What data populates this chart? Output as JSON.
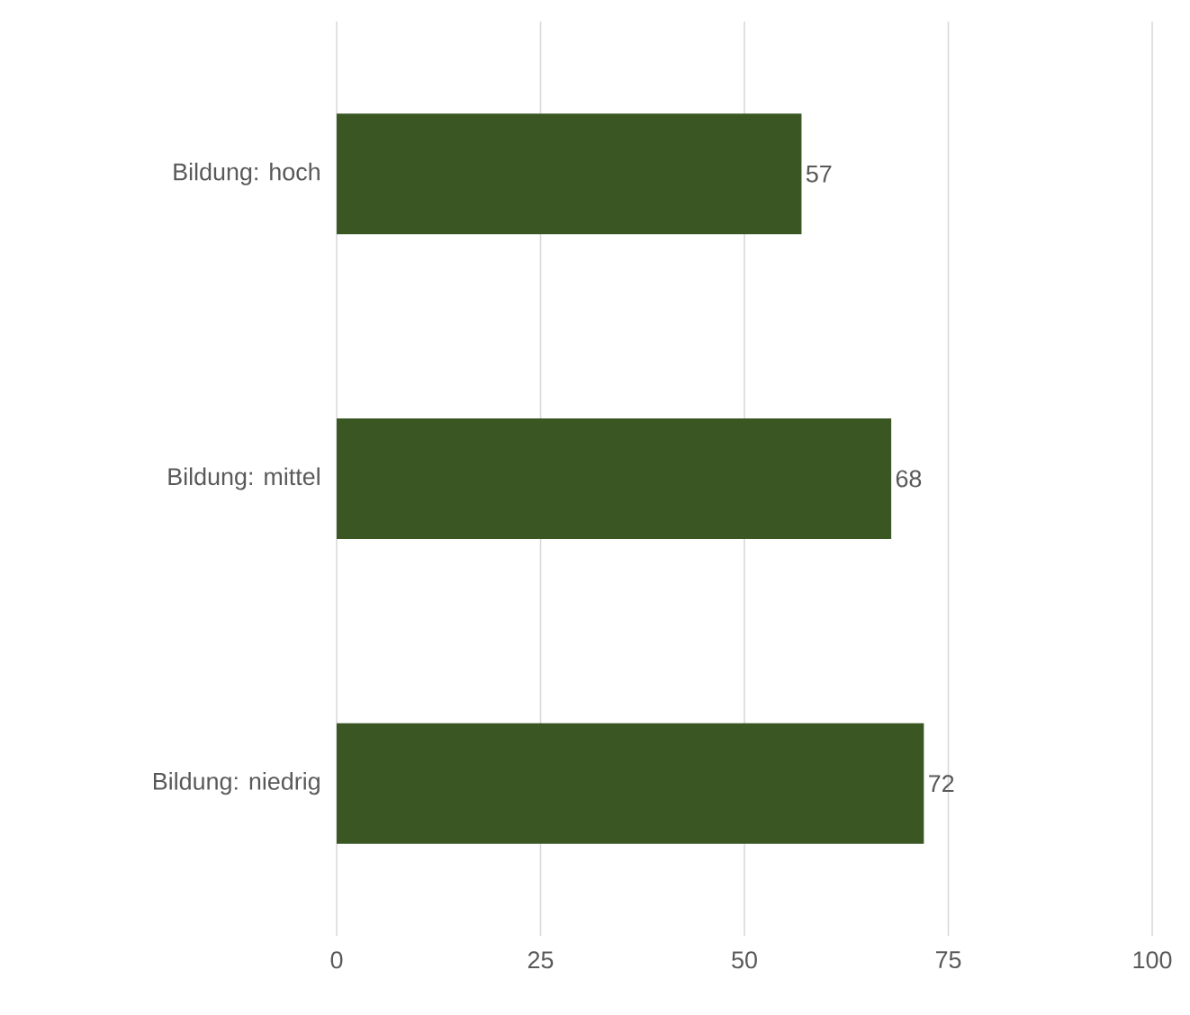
{
  "chart_data": {
    "type": "bar",
    "orientation": "horizontal",
    "categories": [
      "Bildung: hoch",
      "Bildung: mittel",
      "Bildung: niedrig"
    ],
    "values": [
      57,
      68,
      72
    ],
    "color": "#3a5723",
    "xlim": [
      0,
      100
    ],
    "xticks": [
      0,
      25,
      50,
      75,
      100
    ],
    "grid": "x",
    "data_labels": true
  }
}
